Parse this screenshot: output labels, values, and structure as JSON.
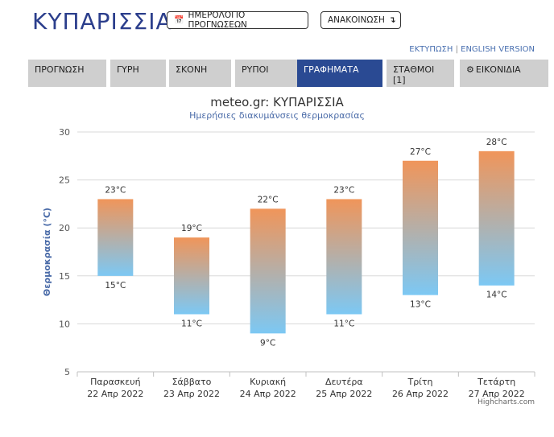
{
  "header": {
    "city_title": "ΚΥΠΑΡΙΣΣΙΑ",
    "calendar_button": "ΗΜΕΡΟΛΟΓΙΟ ΠΡΟΓΝΩΣΕΩΝ",
    "announcement_button": "ΑΝΑΚΟΙΝΩΣΗ",
    "print_link": "ΕΚΤΥΠΩΣΗ",
    "separator": "|",
    "english_link": "ENGLISH VERSION"
  },
  "tabs": [
    {
      "label": "ΠΡΟΓΝΩΣΗ",
      "active": false
    },
    {
      "label": "ΓΥΡΗ",
      "active": false
    },
    {
      "label": "ΣΚΟΝΗ",
      "active": false
    },
    {
      "label": "ΡΥΠΟΙ",
      "active": false
    },
    {
      "label": "ΓΡΑΦΗΜΑΤΑ",
      "active": true
    },
    {
      "label": "ΣΤΑΘΜΟΙ [1]",
      "active": false
    },
    {
      "label": "ΕΙΚΟΝΙΔΙΑ",
      "active": false,
      "icon": "gear-icon"
    }
  ],
  "chart_data": {
    "type": "columnrange",
    "title": "meteo.gr: ΚΥΠΑΡΙΣΣΙΑ",
    "subtitle": "Ημερήσιες διακυμάνσεις θερμοκρασίας",
    "ylabel": "Θερμοκρασία (°C)",
    "ylim": [
      5,
      30
    ],
    "yticks": [
      5,
      10,
      15,
      20,
      25,
      30
    ],
    "grid": true,
    "categories": [
      [
        "Παρασκευή",
        "22 Απρ 2022"
      ],
      [
        "Σάββατο",
        "23 Απρ 2022"
      ],
      [
        "Κυριακή",
        "24 Απρ 2022"
      ],
      [
        "Δευτέρα",
        "25 Απρ 2022"
      ],
      [
        "Τρίτη",
        "26 Απρ 2022"
      ],
      [
        "Τετάρτη",
        "27 Απρ 2022"
      ]
    ],
    "low": [
      15,
      11,
      9,
      11,
      13,
      14
    ],
    "high": [
      23,
      19,
      22,
      23,
      27,
      28
    ],
    "unit": "°C",
    "colors": {
      "top": "#f0955a",
      "bottom": "#7cc8f4",
      "grid": "#d8d8d8",
      "axis_label": "#4a6ba8"
    }
  },
  "credits": "Highcharts.com"
}
